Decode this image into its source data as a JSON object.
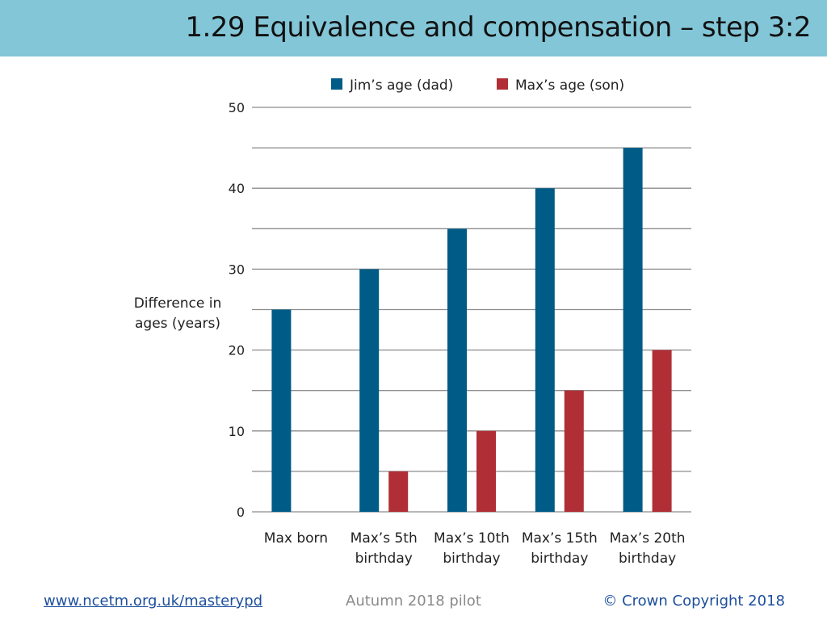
{
  "slide": {
    "title": "1.29 Equivalence and compensation – step 3:2"
  },
  "footer": {
    "url": "www.ncetm.org.uk/masterypd",
    "pilot": "Autumn 2018 pilot",
    "copyright": "© Crown Copyright 2018"
  },
  "chart_data": {
    "type": "bar",
    "categories": [
      [
        "Max born"
      ],
      [
        "Max’s 5th",
        "birthday"
      ],
      [
        "Max’s 10th",
        "birthday"
      ],
      [
        "Max’s 15th",
        "birthday"
      ],
      [
        "Max’s 20th",
        "birthday"
      ]
    ],
    "series": [
      {
        "name": "Jim’s age (dad)",
        "color": "#005b86",
        "values": [
          25,
          30,
          35,
          40,
          45
        ]
      },
      {
        "name": "Max’s age (son)",
        "color": "#b02f36",
        "values": [
          0,
          5,
          10,
          15,
          20
        ]
      }
    ],
    "ylabel": [
      "Difference in",
      "ages (years)"
    ],
    "ylim": [
      0,
      50
    ],
    "yticks": [
      0,
      10,
      20,
      30,
      40,
      50
    ],
    "gridlines": [
      0,
      5,
      10,
      15,
      20,
      25,
      30,
      35,
      40,
      45,
      50
    ],
    "grid": true,
    "legend_position": "top"
  }
}
